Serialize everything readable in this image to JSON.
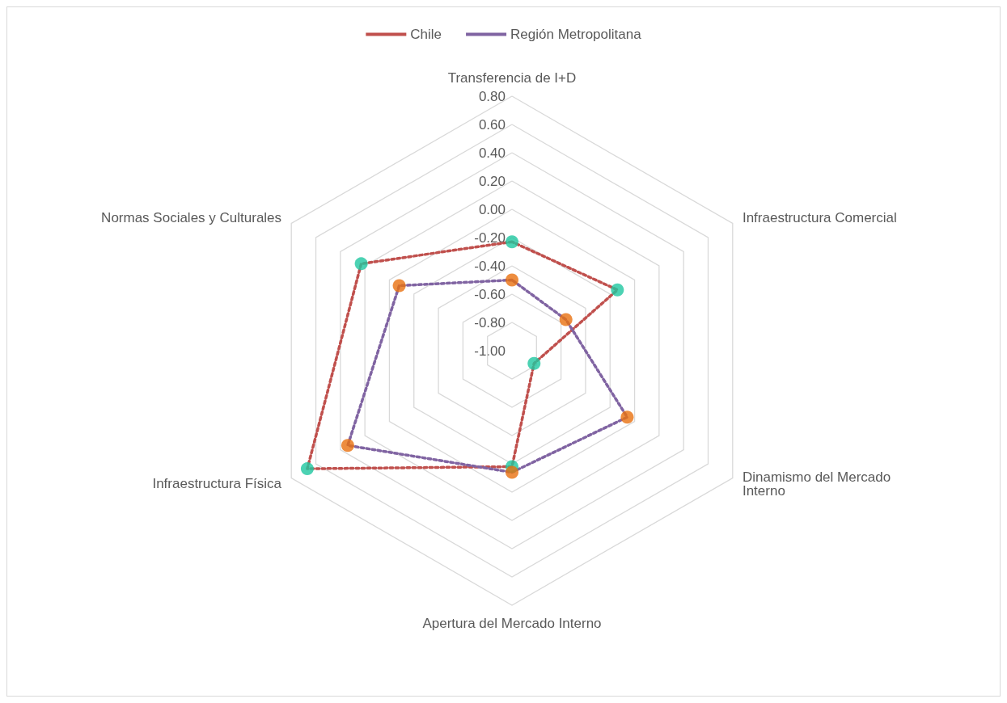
{
  "chart_data": {
    "type": "radar",
    "categories": [
      "Transferencia de I+D",
      "Infraestructura Comercial",
      "Dinamismo del Mercado\nInterno",
      "Apertura del Mercado Interno",
      "Infraestructura Física",
      "Normas Sociales y Culturales"
    ],
    "series": [
      {
        "name": "Chile",
        "color": "#c0504d",
        "colors": [
          "#1fc7a0",
          "#1fc7a0",
          "#1fc7a0",
          "#1fc7a0",
          "#1fc7a0",
          "#1fc7a0"
        ],
        "values": [
          -0.23,
          -0.14,
          -0.82,
          -0.18,
          0.67,
          0.23
        ]
      },
      {
        "name": "Región Metropolitana",
        "color": "#8064a2",
        "colors": [
          "#e8700f",
          "#e8700f",
          "#e8700f",
          "#e8700f",
          "#e8700f",
          "#e8700f"
        ],
        "values": [
          -0.5,
          -0.56,
          -0.06,
          -0.14,
          0.34,
          -0.08
        ]
      }
    ],
    "ylim": [
      -1,
      0.8
    ],
    "yticks": [
      {
        "value": -1,
        "label": "-1.00"
      },
      {
        "value": -0.8,
        "label": "-0.80"
      },
      {
        "value": -0.6,
        "label": "-0.60"
      },
      {
        "value": -0.4,
        "label": "-0.40"
      },
      {
        "value": -0.2,
        "label": "-0.20"
      },
      {
        "value": 0,
        "label": "0.00"
      },
      {
        "value": 0.2,
        "label": "0.20"
      },
      {
        "value": 0.4,
        "label": "0.40"
      },
      {
        "value": 0.6,
        "label": "0.60"
      },
      {
        "value": 0.8,
        "label": "0.80"
      }
    ],
    "grid": true,
    "legend": "top",
    "marker": "circle",
    "line_style": "dotted"
  }
}
